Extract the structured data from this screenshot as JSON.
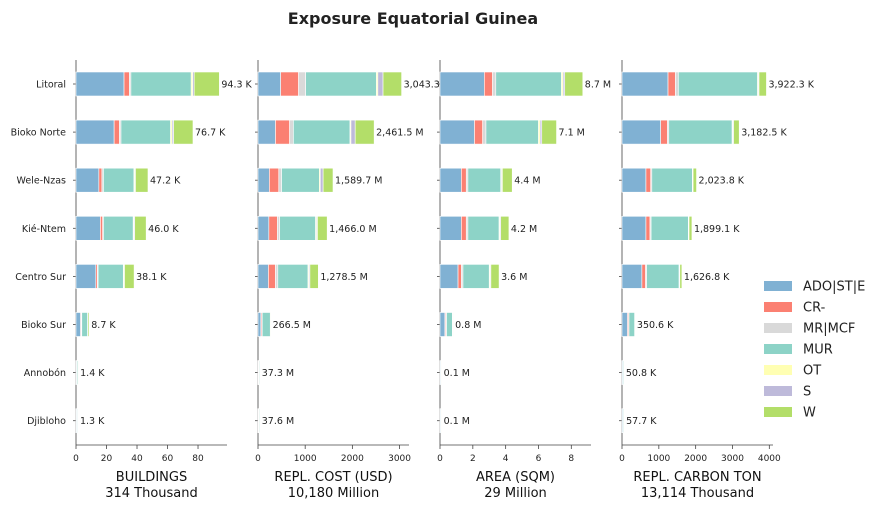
{
  "chart_data": {
    "type": "bar",
    "orientation": "horizontal",
    "stacked": true,
    "title": "Exposure Equatorial Guinea",
    "categories": [
      "Litoral",
      "Bioko Norte",
      "Wele-Nzas",
      "Kié-Ntem",
      "Centro Sur",
      "Bioko Sur",
      "Annobón",
      "Djibloho"
    ],
    "series_names": [
      "ADO|ST|E",
      "CR-",
      "MR|MCF",
      "MUR",
      "OT",
      "S",
      "W"
    ],
    "series_colors": [
      "#80b1d3",
      "#fb8072",
      "#d9d9d9",
      "#8dd3c7",
      "#ffffb3",
      "#bebada",
      "#b3de69"
    ],
    "legend_position": "right",
    "panels": [
      {
        "xlabel": "BUILDINGS",
        "total_label": "314 Thousand",
        "xlim": [
          0,
          99
        ],
        "xticks": [
          0,
          20,
          40,
          60,
          80
        ],
        "tick_labels": [
          "0",
          "20",
          "40",
          "60",
          "80"
        ],
        "values": [
          [
            31.5,
            3.5,
            1.0,
            39.5,
            1.0,
            1.0,
            16.5
          ],
          [
            25.0,
            3.5,
            1.0,
            32.5,
            1.0,
            1.0,
            12.7
          ],
          [
            15.0,
            2.0,
            1.0,
            20.0,
            0.5,
            0.5,
            8.2
          ],
          [
            16.0,
            1.5,
            0.5,
            19.5,
            0.5,
            0.5,
            7.5
          ],
          [
            13.0,
            1.0,
            0.5,
            16.5,
            0.5,
            0.3,
            6.3
          ],
          [
            3.0,
            0.5,
            0.3,
            3.8,
            0.2,
            0.1,
            0.8
          ],
          [
            0.4,
            0.1,
            0.05,
            0.6,
            0.05,
            0.05,
            0.15
          ],
          [
            0.4,
            0.1,
            0.05,
            0.5,
            0.05,
            0.05,
            0.15
          ]
        ],
        "value_labels": [
          "94.3 K",
          "76.7 K",
          "47.2 K",
          "46.0 K",
          "38.1 K",
          "8.7 K",
          "1.4 K",
          "1.3 K"
        ]
      },
      {
        "xlabel": "REPL. COST (USD)",
        "total_label": "10,180 Million",
        "xlim": [
          0,
          3200
        ],
        "xticks": [
          0,
          1000,
          2000,
          3000
        ],
        "tick_labels": [
          "0",
          "1000",
          "2000",
          "3000"
        ],
        "values": [
          [
            480,
            380,
            150,
            1500,
            30,
            110,
            393.3
          ],
          [
            370,
            300,
            80,
            1200,
            20,
            90,
            401.5
          ],
          [
            240,
            200,
            60,
            800,
            20,
            60,
            209.7
          ],
          [
            230,
            180,
            50,
            760,
            20,
            20,
            206.0
          ],
          [
            220,
            150,
            50,
            640,
            20,
            20,
            178.5
          ],
          [
            60,
            20,
            10,
            170,
            2,
            2,
            2.5
          ],
          [
            10,
            5,
            2,
            18,
            1,
            1,
            0.3
          ],
          [
            10,
            5,
            2,
            18,
            1,
            1,
            0.6
          ]
        ],
        "value_labels": [
          "3,043.3",
          "2,461.5 M",
          "1,589.7 M",
          "1,466.0 M",
          "1,278.5 M",
          "266.5 M",
          "37.3 M",
          "37.6 M"
        ]
      },
      {
        "xlabel": "AREA (SQM)",
        "total_label": "29 Million",
        "xlim": [
          0,
          9.2
        ],
        "xticks": [
          0,
          2,
          4,
          6,
          8
        ],
        "tick_labels": [
          "0",
          "2",
          "4",
          "6",
          "8"
        ],
        "values": [
          [
            2.7,
            0.5,
            0.2,
            4.0,
            0.1,
            0.1,
            1.1
          ],
          [
            2.1,
            0.5,
            0.2,
            3.2,
            0.1,
            0.1,
            0.9
          ],
          [
            1.3,
            0.3,
            0.1,
            2.0,
            0.05,
            0.05,
            0.6
          ],
          [
            1.3,
            0.3,
            0.1,
            1.9,
            0.05,
            0.05,
            0.5
          ],
          [
            1.1,
            0.2,
            0.1,
            1.6,
            0.05,
            0.05,
            0.5
          ],
          [
            0.3,
            0.05,
            0.05,
            0.35,
            0.01,
            0.01,
            0.03
          ],
          [
            0.04,
            0.01,
            0.01,
            0.03,
            0.0,
            0.0,
            0.01
          ],
          [
            0.04,
            0.01,
            0.01,
            0.03,
            0.0,
            0.0,
            0.01
          ]
        ],
        "value_labels": [
          "8.7 M",
          "7.1 M",
          "4.4 M",
          "4.2 M",
          "3.6 M",
          "0.8 M",
          "0.1 M",
          "0.1 M"
        ]
      },
      {
        "xlabel": "REPL. CARBON TON",
        "total_label": "13,114 Thousand",
        "xlim": [
          0,
          4100
        ],
        "xticks": [
          0,
          1000,
          2000,
          3000,
          4000
        ],
        "tick_labels": [
          "0",
          "1000",
          "2000",
          "3000",
          "4000"
        ],
        "values": [
          [
            1250,
            200,
            80,
            2150,
            20,
            20,
            202.3
          ],
          [
            1050,
            180,
            40,
            1720,
            20,
            20,
            152.5
          ],
          [
            650,
            130,
            30,
            1100,
            10,
            10,
            93.8
          ],
          [
            650,
            110,
            30,
            1010,
            10,
            10,
            79.1
          ],
          [
            540,
            100,
            30,
            880,
            10,
            10,
            56.8
          ],
          [
            150,
            30,
            10,
            155,
            1,
            1,
            3.6
          ],
          [
            20,
            5,
            2,
            22,
            0.5,
            0.5,
            0.8
          ],
          [
            22,
            5,
            2,
            27,
            0.5,
            0.5,
            0.7
          ]
        ],
        "value_labels": [
          "3,922.3 K",
          "3,182.5 K",
          "2,023.8 K",
          "1,899.1 K",
          "1,626.8 K",
          "350.6 K",
          "50.8 K",
          "57.7 K"
        ]
      }
    ]
  }
}
